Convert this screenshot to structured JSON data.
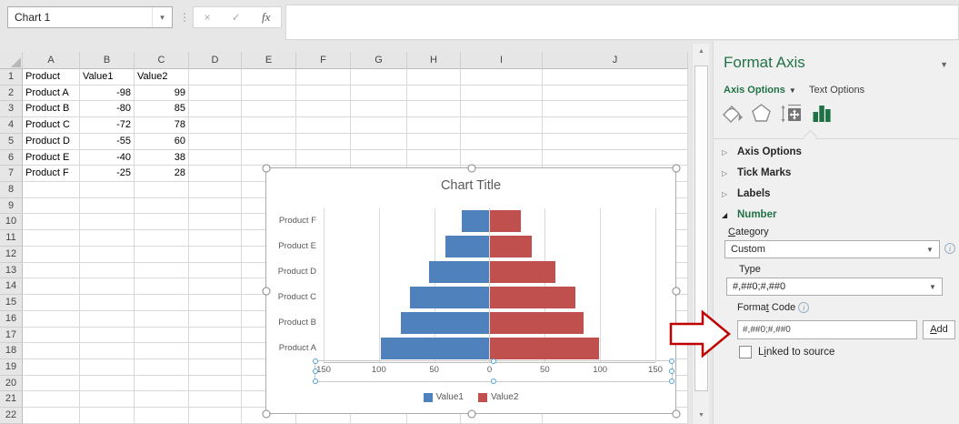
{
  "name_box": {
    "value": "Chart 1"
  },
  "formula_bar": {
    "cancel_icon": "×",
    "enter_icon": "✓",
    "fx_icon": "fx",
    "value": ""
  },
  "icons": {
    "dropdown": "▾",
    "dots": "⋮",
    "pane_caret": "▼",
    "tab_caret": "▼",
    "collapsed": "▷",
    "expanded": "◢",
    "scroll_up": "▲",
    "scroll_down": "▼",
    "info": "i"
  },
  "grid": {
    "columns": [
      "A",
      "B",
      "C",
      "D",
      "E",
      "F",
      "G",
      "H",
      "I",
      "J"
    ],
    "row_numbers": [
      1,
      2,
      3,
      4,
      5,
      6,
      7,
      8,
      9,
      10,
      11,
      12,
      13,
      14,
      15,
      16,
      17,
      18,
      19,
      20,
      21,
      22
    ],
    "cells": {
      "A1": "Product",
      "B1": "Value1",
      "C1": "Value2",
      "A2": "Product A",
      "B2": "-98",
      "C2": "99",
      "A3": "Product B",
      "B3": "-80",
      "C3": "85",
      "A4": "Product C",
      "B4": "-72",
      "C4": "78",
      "A5": "Product D",
      "B5": "-55",
      "C5": "60",
      "A6": "Product E",
      "B6": "-40",
      "C6": "38",
      "A7": "Product F",
      "B7": "-25",
      "C7": "28"
    }
  },
  "chart_data": {
    "type": "bar",
    "orientation": "horizontal-tornado",
    "title": "Chart Title",
    "categories": [
      "Product A",
      "Product B",
      "Product C",
      "Product D",
      "Product E",
      "Product F"
    ],
    "series": [
      {
        "name": "Value1",
        "color": "#4F81BD",
        "values": [
          -98,
          -80,
          -72,
          -55,
          -40,
          -25
        ]
      },
      {
        "name": "Value2",
        "color": "#C0504D",
        "values": [
          99,
          85,
          78,
          60,
          38,
          28
        ]
      }
    ],
    "x_ticks": [
      "150",
      "100",
      "50",
      "0",
      "50",
      "100",
      "150"
    ],
    "xlim": [
      -150,
      150
    ],
    "grid": true,
    "legend_position": "bottom",
    "axis_number_format": "#,##0;#,##0"
  },
  "panel": {
    "title": "Format Axis",
    "tabs": [
      {
        "label": "Axis Options",
        "active": true
      },
      {
        "label": "Text Options",
        "active": false
      }
    ],
    "toolbar_icons": [
      "fill-line-icon",
      "effects-icon",
      "size-properties-icon",
      "axis-options-chart-icon"
    ],
    "sections": [
      {
        "label": "Axis Options",
        "state": "collapsed",
        "accent": false
      },
      {
        "label": "Tick Marks",
        "state": "collapsed",
        "accent": false
      },
      {
        "label": "Labels",
        "state": "collapsed",
        "accent": false
      },
      {
        "label": "Number",
        "state": "expanded",
        "accent": true
      }
    ],
    "number": {
      "category_label": {
        "pre": "",
        "u": "C",
        "post": "ategory"
      },
      "category_value": "Custom",
      "type_label": "Type",
      "type_value": "#,##0;#,##0",
      "format_code_label": {
        "pre": "Forma",
        "u": "t",
        "post": " Code"
      },
      "format_code_value": "#,##0;#,##0",
      "add_label": {
        "pre": "",
        "u": "A",
        "post": "dd"
      },
      "linked_label": {
        "pre": "L",
        "u": "i",
        "post": "nked to source"
      },
      "linked_checked": false
    }
  },
  "colors": {
    "accent_green": "#217346",
    "series1_blue": "#4F81BD",
    "series2_red": "#C0504D",
    "arrow_red": "#C00000",
    "pane_bg": "#F0F0F0",
    "gridline": "#D9D9D9"
  }
}
